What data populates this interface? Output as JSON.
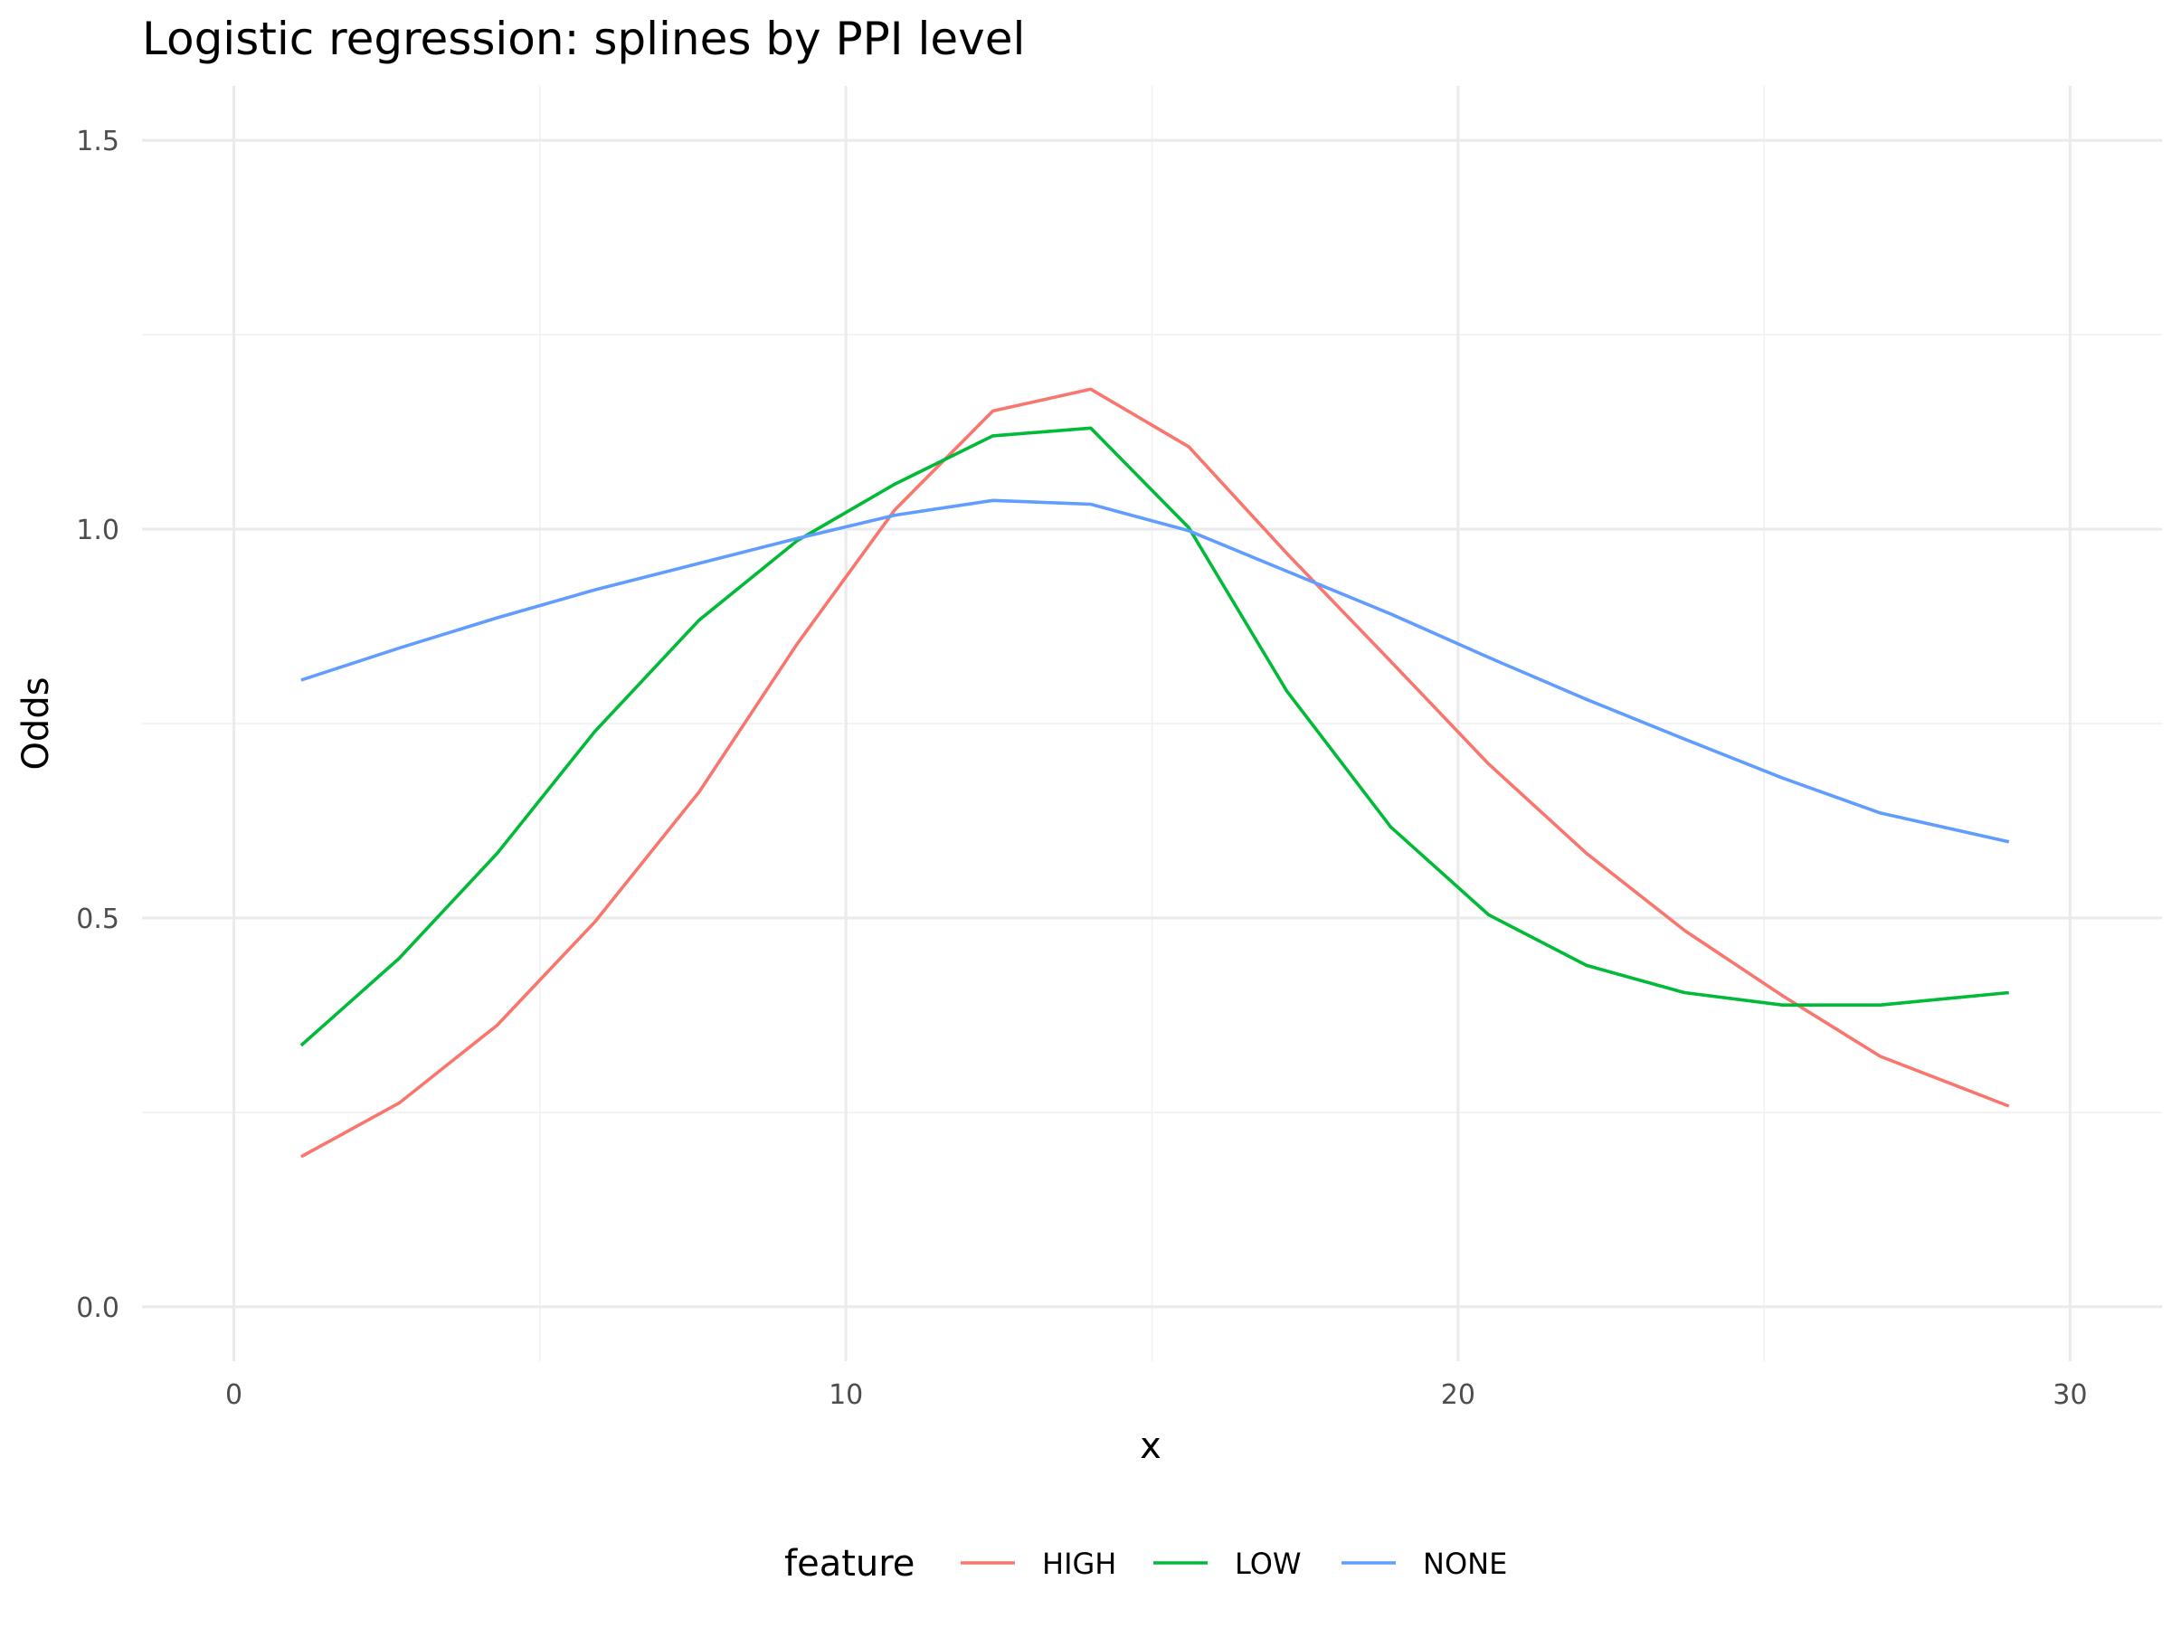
{
  "chart_data": {
    "type": "line",
    "title": "Logistic regression: splines by PPI level",
    "xlabel": "x",
    "ylabel": "Odds",
    "xlim": [
      -1.5,
      31.5
    ],
    "ylim": [
      -0.07,
      1.57
    ],
    "x_ticks": [
      0,
      10,
      20,
      30
    ],
    "x_tick_labels": [
      "0",
      "10",
      "20",
      "30"
    ],
    "x_minor_ticks": [
      5,
      15,
      25
    ],
    "y_ticks": [
      0,
      0.5,
      1,
      1.5
    ],
    "y_tick_labels": [
      "0.0",
      "0.5",
      "1.0",
      "1.5"
    ],
    "y_minor_ticks": [
      0.25,
      0.75,
      1.25
    ],
    "grid": true,
    "legend": {
      "title": "feature",
      "position": "bottom"
    },
    "x": [
      1.1,
      2.7,
      4.3,
      5.9,
      7.6,
      9.2,
      10.8,
      12.4,
      14.0,
      15.6,
      17.2,
      18.9,
      20.5,
      22.1,
      23.7,
      25.3,
      26.9,
      29.0
    ],
    "series": [
      {
        "name": "HIGH",
        "color": "#F8766D",
        "values": [
          0.193,
          0.262,
          0.362,
          0.495,
          0.662,
          0.852,
          1.025,
          1.152,
          1.18,
          1.106,
          0.969,
          0.83,
          0.698,
          0.583,
          0.484,
          0.4,
          0.322,
          0.258
        ]
      },
      {
        "name": "LOW",
        "color": "#00BA38",
        "values": [
          0.336,
          0.448,
          0.583,
          0.74,
          0.883,
          0.985,
          1.058,
          1.12,
          1.13,
          1.002,
          0.792,
          0.617,
          0.504,
          0.439,
          0.404,
          0.388,
          0.388,
          0.404
        ]
      },
      {
        "name": "NONE",
        "color": "#619CFF",
        "values": [
          0.806,
          0.847,
          0.886,
          0.922,
          0.956,
          0.988,
          1.018,
          1.037,
          1.032,
          0.998,
          0.946,
          0.891,
          0.835,
          0.781,
          0.73,
          0.68,
          0.635,
          0.598
        ]
      }
    ]
  }
}
